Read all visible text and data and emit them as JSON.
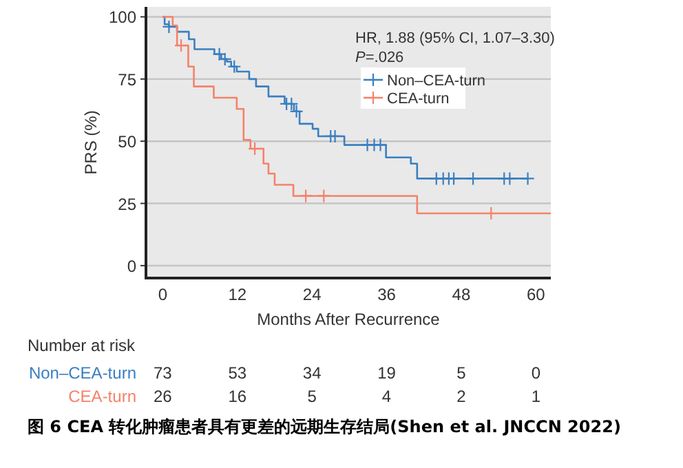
{
  "chart_data": {
    "type": "step",
    "xlabel": "Months After Recurrence",
    "ylabel": "PRS (%)",
    "xlim": [
      -2.7,
      62.4
    ],
    "ylim": [
      -5,
      104
    ],
    "xticks": [
      0,
      12,
      24,
      36,
      48,
      60
    ],
    "yticks": [
      0,
      25,
      50,
      75,
      100
    ],
    "grid": "y",
    "legend": "top right",
    "series": [
      {
        "name": "Non–CEA-turn",
        "color": "#3a7fc0",
        "x": [
          0,
          0.3,
          1.0,
          2.3,
          4.2,
          5.1,
          8.3,
          9.4,
          10.3,
          11.0,
          11.9,
          13.9,
          15.0,
          17.0,
          19.6,
          21.1,
          22.0,
          24.1,
          25.0,
          29.2,
          35.9,
          39.9,
          40.9,
          58.7
        ],
        "values": [
          100,
          97,
          96,
          94,
          91,
          87,
          85,
          83,
          82,
          80,
          78,
          75,
          72,
          68,
          65,
          62,
          57,
          55,
          52,
          48.5,
          43.5,
          41,
          35,
          35
        ]
      },
      {
        "name": "CEA-turn",
        "color": "#f4826a",
        "x": [
          0,
          1.6,
          2.3,
          4.1,
          5.0,
          8.2,
          11.9,
          13.0,
          14.1,
          16.2,
          17.0,
          18.0,
          21.0,
          40.9,
          62.4
        ],
        "values": [
          100,
          96.5,
          88.5,
          80,
          72,
          67.5,
          63,
          50.5,
          47,
          41,
          37,
          32.5,
          28,
          21,
          21
        ]
      },
      {
        "type": "scatter",
        "color": "#3a7fc0",
        "x": [
          1.0,
          9.1,
          10.0,
          11.5,
          19.9,
          20.7,
          21.5,
          27.0,
          27.7,
          32.9,
          34.0,
          35.0,
          44.0,
          45.1,
          46.0,
          46.8,
          49.9,
          54.9,
          55.8,
          58.7
        ],
        "values": [
          96,
          85,
          83,
          80,
          65,
          65,
          62,
          52,
          52,
          48.5,
          48.5,
          48.5,
          35,
          35,
          35,
          35,
          35,
          35,
          35,
          35
        ]
      },
      {
        "type": "scatter",
        "color": "#f4826a",
        "x": [
          2.95,
          14.8,
          23.0,
          25.9,
          52.8
        ],
        "values": [
          88.5,
          47,
          28,
          28,
          21
        ]
      }
    ],
    "annotations": [
      "HR, 1.88 (95% CI, 1.07–3.30)",
      "*P*=.026",
      "Number at risk",
      "Non–CEA-turn",
      "73",
      "53",
      "34",
      "19",
      "5",
      "0",
      "CEA-turn",
      "26",
      "16",
      "5",
      "4",
      "2",
      "1",
      "图 6 CEA 转化肿瘤患者具有更差的远期生存结局(Shen et al. JNCCN 2022)"
    ]
  }
}
